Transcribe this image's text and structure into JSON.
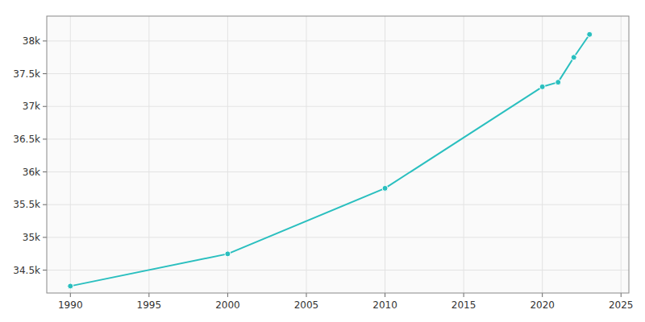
{
  "chart_data": {
    "type": "line",
    "x": [
      1990,
      2000,
      2010,
      2020,
      2021,
      2022,
      2023
    ],
    "values": [
      34256,
      34748,
      35750,
      37300,
      37370,
      37750,
      38100
    ],
    "color": "#2abfbf",
    "marker": "circle",
    "xlim": [
      1988.5,
      2025.5
    ],
    "ylim": [
      34150,
      38380
    ],
    "xticks": [
      1990,
      1995,
      2000,
      2005,
      2010,
      2015,
      2020,
      2025
    ],
    "yticks": [
      {
        "value": 34500,
        "label": "34.5k"
      },
      {
        "value": 35000,
        "label": "35k"
      },
      {
        "value": 35500,
        "label": "35.5k"
      },
      {
        "value": 36000,
        "label": "36k"
      },
      {
        "value": 36500,
        "label": "36.5k"
      },
      {
        "value": 37000,
        "label": "37k"
      },
      {
        "value": 37500,
        "label": "37.5k"
      },
      {
        "value": 38000,
        "label": "38k"
      }
    ],
    "grid": true
  }
}
